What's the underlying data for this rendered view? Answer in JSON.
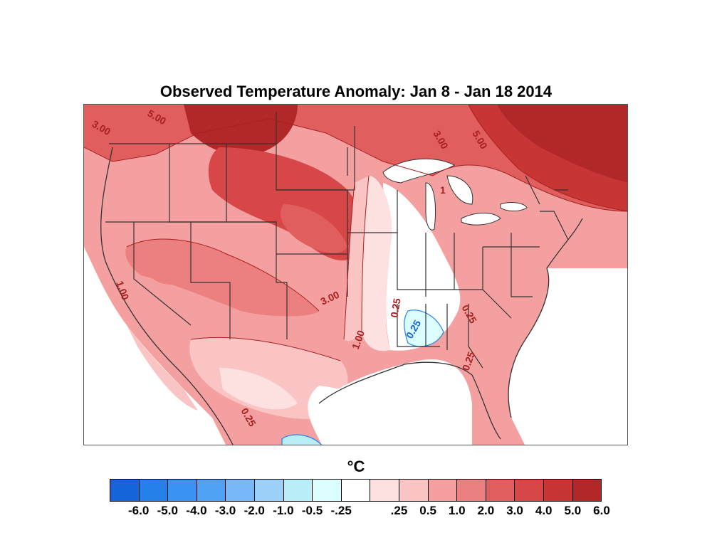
{
  "title": "Observed Temperature Anomaly: Jan 8 - Jan 18 2014",
  "unit": "°C",
  "colorbar": {
    "colors": [
      "#1565d8",
      "#2680ea",
      "#3a92f2",
      "#50a2f5",
      "#79b8f8",
      "#9dd0f8",
      "#b7eef8",
      "#dcfdfd",
      "#ffffff",
      "#fde0e0",
      "#fbc4c4",
      "#f5a0a0",
      "#ec8080",
      "#e15e5e",
      "#d74747",
      "#c73535",
      "#b22727"
    ],
    "labels": [
      "-6.0",
      "-5.0",
      "-4.0",
      "-3.0",
      "-2.0",
      "-1.0",
      "-0.5",
      "-.25",
      ".25",
      "0.5",
      "1.0",
      "2.0",
      "3.0",
      "4.0",
      "5.0",
      "6.0"
    ]
  },
  "contour_labels": {
    "nw_three": "3.00",
    "nw_five": "5.00",
    "ne_three": "3.00",
    "ne_five": "5.00",
    "great_lakes_one": "1",
    "west_one": "1.00",
    "plains_three": "3.00",
    "south_one": "1.00",
    "mid_quarter": "0.25",
    "se_quarter": "0.25",
    "fl_quarter": "0.25",
    "gulf_quarter": "0.25",
    "mexico_quarter": "0.25"
  }
}
